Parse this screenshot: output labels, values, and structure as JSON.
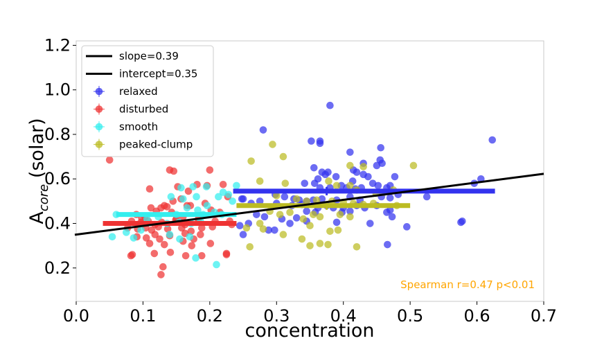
{
  "chart_data": {
    "type": "scatter",
    "title": "",
    "xlabel": "concentration",
    "ylabel_main": "A",
    "ylabel_sub": "core",
    "ylabel_rest": " (solar)",
    "xlim": [
      0.0,
      0.7
    ],
    "ylim": [
      0.05,
      1.22
    ],
    "x_ticks": [
      0.0,
      0.1,
      0.2,
      0.3,
      0.4,
      0.5,
      0.6,
      0.7
    ],
    "x_tick_labels": [
      "0.0",
      "0.1",
      "0.2",
      "0.3",
      "0.4",
      "0.5",
      "0.6",
      "0.7"
    ],
    "y_ticks": [
      0.2,
      0.4,
      0.6,
      0.8,
      1.0,
      1.2
    ],
    "y_tick_labels": [
      "0.2",
      "0.4",
      "0.6",
      "0.8",
      "1.0",
      "1.2"
    ],
    "fit_line": {
      "slope": 0.39,
      "intercept": 0.35,
      "color": "#000000"
    },
    "legend": {
      "location": "upper-left",
      "entries": [
        {
          "label": "slope=0.39",
          "kind": "line",
          "color": "#000000"
        },
        {
          "label": "intercept=0.35",
          "kind": "line",
          "color": "#000000"
        },
        {
          "label": "relaxed",
          "kind": "marker",
          "color": "#3333ee"
        },
        {
          "label": "disturbed",
          "kind": "marker",
          "color": "#ee3333"
        },
        {
          "label": "smooth",
          "kind": "marker",
          "color": "#33eeee"
        },
        {
          "label": "peaked-clump",
          "kind": "marker",
          "color": "#bbbb22"
        }
      ]
    },
    "annotation": {
      "text": "Spearman  r=0.47 p<0.01",
      "color": "#ffa500"
    },
    "series": [
      {
        "name": "relaxed",
        "color": "#3333ee",
        "median_line": {
          "x_start": 0.235,
          "x_end": 0.627,
          "y": 0.545
        },
        "median_point": [
          0.375,
          0.545
        ],
        "points": [
          [
            0.38,
            0.93
          ],
          [
            0.28,
            0.82
          ],
          [
            0.352,
            0.77
          ],
          [
            0.365,
            0.77
          ],
          [
            0.365,
            0.76
          ],
          [
            0.456,
            0.74
          ],
          [
            0.41,
            0.72
          ],
          [
            0.623,
            0.775
          ],
          [
            0.43,
            0.67
          ],
          [
            0.45,
            0.66
          ],
          [
            0.415,
            0.64
          ],
          [
            0.42,
            0.63
          ],
          [
            0.455,
            0.685
          ],
          [
            0.458,
            0.67
          ],
          [
            0.356,
            0.65
          ],
          [
            0.368,
            0.63
          ],
          [
            0.377,
            0.63
          ],
          [
            0.389,
            0.61
          ],
          [
            0.43,
            0.62
          ],
          [
            0.437,
            0.61
          ],
          [
            0.477,
            0.61
          ],
          [
            0.362,
            0.6
          ],
          [
            0.373,
            0.62
          ],
          [
            0.414,
            0.59
          ],
          [
            0.47,
            0.57
          ],
          [
            0.342,
            0.58
          ],
          [
            0.357,
            0.58
          ],
          [
            0.365,
            0.56
          ],
          [
            0.38,
            0.56
          ],
          [
            0.397,
            0.57
          ],
          [
            0.405,
            0.56
          ],
          [
            0.418,
            0.555
          ],
          [
            0.427,
            0.56
          ],
          [
            0.444,
            0.58
          ],
          [
            0.452,
            0.57
          ],
          [
            0.465,
            0.56
          ],
          [
            0.596,
            0.58
          ],
          [
            0.606,
            0.6
          ],
          [
            0.298,
            0.53
          ],
          [
            0.312,
            0.52
          ],
          [
            0.326,
            0.51
          ],
          [
            0.334,
            0.505
          ],
          [
            0.345,
            0.5
          ],
          [
            0.355,
            0.505
          ],
          [
            0.368,
            0.51
          ],
          [
            0.39,
            0.505
          ],
          [
            0.41,
            0.52
          ],
          [
            0.425,
            0.505
          ],
          [
            0.457,
            0.52
          ],
          [
            0.47,
            0.515
          ],
          [
            0.482,
            0.53
          ],
          [
            0.525,
            0.52
          ],
          [
            0.25,
            0.51
          ],
          [
            0.262,
            0.49
          ],
          [
            0.275,
            0.5
          ],
          [
            0.3,
            0.49
          ],
          [
            0.323,
            0.48
          ],
          [
            0.338,
            0.485
          ],
          [
            0.362,
            0.47
          ],
          [
            0.375,
            0.48
          ],
          [
            0.385,
            0.47
          ],
          [
            0.4,
            0.47
          ],
          [
            0.42,
            0.48
          ],
          [
            0.432,
            0.47
          ],
          [
            0.45,
            0.48
          ],
          [
            0.345,
            0.455
          ],
          [
            0.358,
            0.45
          ],
          [
            0.398,
            0.45
          ],
          [
            0.41,
            0.455
          ],
          [
            0.465,
            0.45
          ],
          [
            0.47,
            0.46
          ],
          [
            0.473,
            0.43
          ],
          [
            0.27,
            0.44
          ],
          [
            0.282,
            0.43
          ],
          [
            0.308,
            0.42
          ],
          [
            0.33,
            0.425
          ],
          [
            0.345,
            0.41
          ],
          [
            0.245,
            0.39
          ],
          [
            0.258,
            0.4
          ],
          [
            0.32,
            0.4
          ],
          [
            0.44,
            0.4
          ],
          [
            0.495,
            0.385
          ],
          [
            0.578,
            0.41
          ],
          [
            0.576,
            0.405
          ],
          [
            0.288,
            0.37
          ],
          [
            0.297,
            0.37
          ],
          [
            0.25,
            0.35
          ],
          [
            0.466,
            0.305
          ],
          [
            0.248,
            0.51
          ],
          [
            0.39,
            0.405
          ]
        ]
      },
      {
        "name": "disturbed",
        "color": "#ee3333",
        "median_line": {
          "x_start": 0.04,
          "x_end": 0.24,
          "y": 0.4
        },
        "median_point": null,
        "points": [
          [
            0.05,
            0.685
          ],
          [
            0.14,
            0.64
          ],
          [
            0.2,
            0.64
          ],
          [
            0.146,
            0.635
          ],
          [
            0.152,
            0.565
          ],
          [
            0.181,
            0.575
          ],
          [
            0.22,
            0.575
          ],
          [
            0.11,
            0.555
          ],
          [
            0.196,
            0.57
          ],
          [
            0.168,
            0.545
          ],
          [
            0.132,
            0.48
          ],
          [
            0.145,
            0.5
          ],
          [
            0.157,
            0.51
          ],
          [
            0.166,
            0.48
          ],
          [
            0.227,
            0.52
          ],
          [
            0.193,
            0.49
          ],
          [
            0.112,
            0.47
          ],
          [
            0.127,
            0.47
          ],
          [
            0.136,
            0.475
          ],
          [
            0.171,
            0.48
          ],
          [
            0.09,
            0.44
          ],
          [
            0.103,
            0.43
          ],
          [
            0.12,
            0.455
          ],
          [
            0.143,
            0.45
          ],
          [
            0.16,
            0.43
          ],
          [
            0.202,
            0.46
          ],
          [
            0.215,
            0.45
          ],
          [
            0.083,
            0.41
          ],
          [
            0.097,
            0.405
          ],
          [
            0.108,
            0.41
          ],
          [
            0.118,
            0.395
          ],
          [
            0.128,
            0.405
          ],
          [
            0.149,
            0.415
          ],
          [
            0.163,
            0.395
          ],
          [
            0.183,
            0.42
          ],
          [
            0.208,
            0.41
          ],
          [
            0.23,
            0.41
          ],
          [
            0.077,
            0.38
          ],
          [
            0.092,
            0.375
          ],
          [
            0.104,
            0.38
          ],
          [
            0.113,
            0.37
          ],
          [
            0.123,
            0.385
          ],
          [
            0.137,
            0.375
          ],
          [
            0.158,
            0.38
          ],
          [
            0.172,
            0.365
          ],
          [
            0.188,
            0.38
          ],
          [
            0.204,
            0.385
          ],
          [
            0.233,
            0.395
          ],
          [
            0.118,
            0.35
          ],
          [
            0.14,
            0.345
          ],
          [
            0.163,
            0.355
          ],
          [
            0.091,
            0.34
          ],
          [
            0.105,
            0.335
          ],
          [
            0.125,
            0.33
          ],
          [
            0.16,
            0.32
          ],
          [
            0.176,
            0.33
          ],
          [
            0.186,
            0.35
          ],
          [
            0.11,
            0.31
          ],
          [
            0.132,
            0.305
          ],
          [
            0.173,
            0.3
          ],
          [
            0.201,
            0.31
          ],
          [
            0.117,
            0.265
          ],
          [
            0.141,
            0.27
          ],
          [
            0.164,
            0.255
          ],
          [
            0.188,
            0.255
          ],
          [
            0.084,
            0.26
          ],
          [
            0.082,
            0.255
          ],
          [
            0.13,
            0.205
          ],
          [
            0.127,
            0.17
          ],
          [
            0.225,
            0.265
          ],
          [
            0.225,
            0.26
          ],
          [
            0.15,
            0.42
          ],
          [
            0.098,
            0.425
          ]
        ]
      },
      {
        "name": "smooth",
        "color": "#33eeee",
        "median_line": {
          "x_start": 0.06,
          "x_end": 0.24,
          "y": 0.44
        },
        "median_point": null,
        "points": [
          [
            0.24,
            0.57
          ],
          [
            0.195,
            0.565
          ],
          [
            0.175,
            0.565
          ],
          [
            0.157,
            0.56
          ],
          [
            0.213,
            0.52
          ],
          [
            0.22,
            0.54
          ],
          [
            0.228,
            0.53
          ],
          [
            0.18,
            0.52
          ],
          [
            0.16,
            0.51
          ],
          [
            0.142,
            0.52
          ],
          [
            0.234,
            0.5
          ],
          [
            0.196,
            0.48
          ],
          [
            0.182,
            0.46
          ],
          [
            0.166,
            0.47
          ],
          [
            0.15,
            0.44
          ],
          [
            0.123,
            0.43
          ],
          [
            0.106,
            0.42
          ],
          [
            0.19,
            0.44
          ],
          [
            0.207,
            0.45
          ],
          [
            0.218,
            0.44
          ],
          [
            0.136,
            0.4
          ],
          [
            0.154,
            0.405
          ],
          [
            0.172,
            0.4
          ],
          [
            0.186,
            0.41
          ],
          [
            0.097,
            0.37
          ],
          [
            0.075,
            0.36
          ],
          [
            0.054,
            0.34
          ],
          [
            0.086,
            0.335
          ],
          [
            0.155,
            0.33
          ],
          [
            0.17,
            0.34
          ],
          [
            0.14,
            0.35
          ],
          [
            0.179,
            0.245
          ],
          [
            0.21,
            0.215
          ],
          [
            0.06,
            0.44
          ]
        ]
      },
      {
        "name": "peaked-clump",
        "color": "#bbbb22",
        "median_line": {
          "x_start": 0.24,
          "x_end": 0.5,
          "y": 0.48
        },
        "median_point": [
          0.375,
          0.48
        ],
        "points": [
          [
            0.294,
            0.755
          ],
          [
            0.31,
            0.7
          ],
          [
            0.41,
            0.66
          ],
          [
            0.43,
            0.655
          ],
          [
            0.505,
            0.66
          ],
          [
            0.262,
            0.68
          ],
          [
            0.275,
            0.59
          ],
          [
            0.313,
            0.58
          ],
          [
            0.378,
            0.59
          ],
          [
            0.39,
            0.57
          ],
          [
            0.41,
            0.57
          ],
          [
            0.42,
            0.55
          ],
          [
            0.449,
            0.535
          ],
          [
            0.46,
            0.54
          ],
          [
            0.475,
            0.55
          ],
          [
            0.3,
            0.525
          ],
          [
            0.33,
            0.51
          ],
          [
            0.345,
            0.5
          ],
          [
            0.36,
            0.505
          ],
          [
            0.383,
            0.5
          ],
          [
            0.4,
            0.495
          ],
          [
            0.415,
            0.49
          ],
          [
            0.43,
            0.485
          ],
          [
            0.445,
            0.49
          ],
          [
            0.48,
            0.48
          ],
          [
            0.29,
            0.455
          ],
          [
            0.305,
            0.44
          ],
          [
            0.32,
            0.45
          ],
          [
            0.355,
            0.44
          ],
          [
            0.365,
            0.43
          ],
          [
            0.395,
            0.44
          ],
          [
            0.41,
            0.43
          ],
          [
            0.34,
            0.42
          ],
          [
            0.35,
            0.39
          ],
          [
            0.255,
            0.38
          ],
          [
            0.275,
            0.4
          ],
          [
            0.28,
            0.375
          ],
          [
            0.38,
            0.365
          ],
          [
            0.392,
            0.37
          ],
          [
            0.31,
            0.35
          ],
          [
            0.338,
            0.33
          ],
          [
            0.35,
            0.3
          ],
          [
            0.365,
            0.31
          ],
          [
            0.377,
            0.305
          ],
          [
            0.42,
            0.295
          ],
          [
            0.26,
            0.295
          ]
        ]
      }
    ]
  }
}
